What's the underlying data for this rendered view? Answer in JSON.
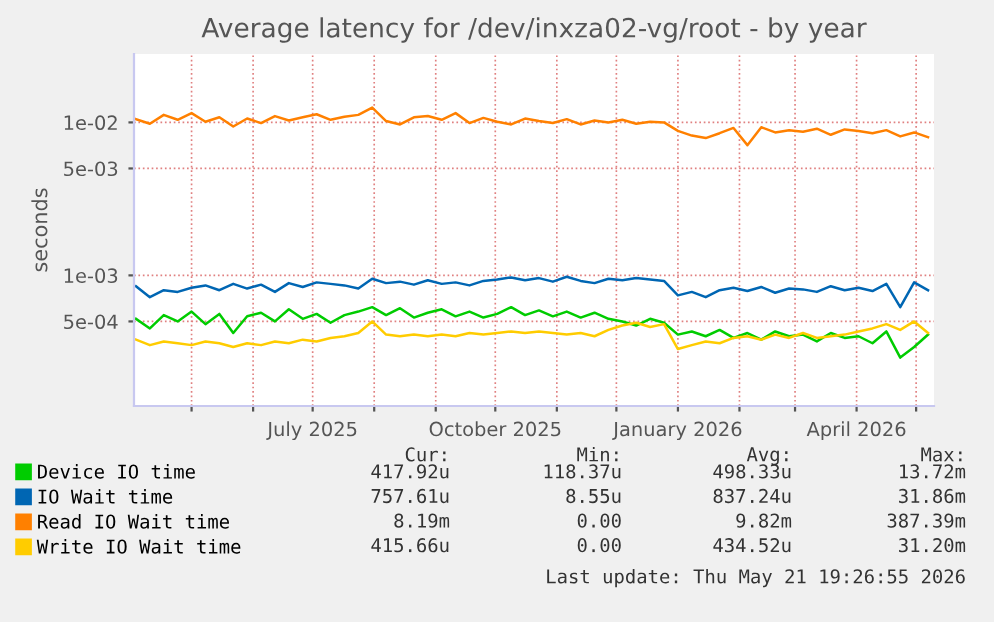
{
  "chart_data": {
    "type": "line",
    "title": "Average latency for /dev/inxza02-vg/root - by year",
    "ylabel": "seconds",
    "log": "y",
    "grid": true,
    "legend": "bottom",
    "ylim": [
      0.00014,
      0.028
    ],
    "yticks": [
      {
        "value": 0.0005,
        "label": "5e-04"
      },
      {
        "value": 0.001,
        "label": "1e-03"
      },
      {
        "value": 0.005,
        "label": "5e-03"
      },
      {
        "value": 0.01,
        "label": "1e-02"
      }
    ],
    "xlim": [
      "2025-04-02",
      "2026-05-10"
    ],
    "xticks": [
      {
        "value": "2025-05-01",
        "label": null
      },
      {
        "value": "2025-06-01",
        "label": null
      },
      {
        "value": "2025-07-01",
        "label": "July 2025"
      },
      {
        "value": "2025-08-01",
        "label": null
      },
      {
        "value": "2025-09-01",
        "label": null
      },
      {
        "value": "2025-10-01",
        "label": "October 2025"
      },
      {
        "value": "2025-11-01",
        "label": null
      },
      {
        "value": "2025-12-01",
        "label": null
      },
      {
        "value": "2026-01-01",
        "label": "January 2026"
      },
      {
        "value": "2026-02-01",
        "label": null
      },
      {
        "value": "2026-03-01",
        "label": null
      },
      {
        "value": "2026-04-01",
        "label": "April 2026"
      },
      {
        "value": "2026-05-01",
        "label": null
      }
    ],
    "x": [
      "2025-04-03",
      "2025-04-10",
      "2025-04-17",
      "2025-04-24",
      "2025-05-01",
      "2025-05-08",
      "2025-05-15",
      "2025-05-22",
      "2025-05-29",
      "2025-06-05",
      "2025-06-12",
      "2025-06-19",
      "2025-06-26",
      "2025-07-03",
      "2025-07-10",
      "2025-07-17",
      "2025-07-24",
      "2025-07-31",
      "2025-08-07",
      "2025-08-14",
      "2025-08-21",
      "2025-08-28",
      "2025-09-04",
      "2025-09-11",
      "2025-09-18",
      "2025-09-25",
      "2025-10-02",
      "2025-10-09",
      "2025-10-16",
      "2025-10-23",
      "2025-10-30",
      "2025-11-06",
      "2025-11-13",
      "2025-11-20",
      "2025-11-27",
      "2025-12-04",
      "2025-12-11",
      "2025-12-18",
      "2025-12-25",
      "2026-01-01",
      "2026-01-08",
      "2026-01-15",
      "2026-01-22",
      "2026-01-29",
      "2026-02-05",
      "2026-02-12",
      "2026-02-19",
      "2026-02-26",
      "2026-03-05",
      "2026-03-12",
      "2026-03-19",
      "2026-03-26",
      "2026-04-02",
      "2026-04-09",
      "2026-04-16",
      "2026-04-23",
      "2026-04-30",
      "2026-05-07"
    ],
    "series": [
      {
        "name": "Device IO time",
        "color": "#00cc00",
        "values": [
          0.00052,
          0.00045,
          0.00055,
          0.0005,
          0.00058,
          0.00048,
          0.00056,
          0.00042,
          0.00054,
          0.00057,
          0.0005,
          0.0006,
          0.00052,
          0.00056,
          0.00049,
          0.00055,
          0.00058,
          0.00062,
          0.00055,
          0.00061,
          0.00053,
          0.00057,
          0.0006,
          0.00054,
          0.00058,
          0.00053,
          0.00056,
          0.00062,
          0.00055,
          0.00059,
          0.00054,
          0.00058,
          0.00053,
          0.00057,
          0.00052,
          0.0005,
          0.00047,
          0.00052,
          0.00049,
          0.00041,
          0.00043,
          0.0004,
          0.00044,
          0.00039,
          0.00042,
          0.00038,
          0.00043,
          0.0004,
          0.00041,
          0.00037,
          0.00042,
          0.00039,
          0.0004,
          0.00036,
          0.00043,
          0.00029,
          0.00034,
          0.00041
        ]
      },
      {
        "name": "IO Wait time",
        "color": "#0066b3",
        "values": [
          0.00085,
          0.00072,
          0.0008,
          0.00078,
          0.00083,
          0.00086,
          0.0008,
          0.00088,
          0.00082,
          0.00087,
          0.00078,
          0.00089,
          0.00084,
          0.0009,
          0.00088,
          0.00086,
          0.00082,
          0.00095,
          0.00089,
          0.00091,
          0.00087,
          0.00093,
          0.00088,
          0.0009,
          0.00086,
          0.00092,
          0.00094,
          0.00097,
          0.00093,
          0.00096,
          0.00091,
          0.00098,
          0.00092,
          0.00089,
          0.00095,
          0.00093,
          0.00096,
          0.00094,
          0.00092,
          0.00074,
          0.00078,
          0.00072,
          0.0008,
          0.00083,
          0.00079,
          0.00084,
          0.00077,
          0.00082,
          0.00081,
          0.00078,
          0.00085,
          0.0008,
          0.00083,
          0.00079,
          0.00088,
          0.00062,
          0.0009,
          0.0008
        ]
      },
      {
        "name": "Read IO Wait time",
        "color": "#ff8000",
        "values": [
          0.0105,
          0.0098,
          0.0112,
          0.0104,
          0.0115,
          0.0101,
          0.0108,
          0.0094,
          0.0106,
          0.0099,
          0.011,
          0.0103,
          0.0108,
          0.0113,
          0.0104,
          0.0109,
          0.0112,
          0.0125,
          0.0102,
          0.0097,
          0.0108,
          0.011,
          0.0104,
          0.0115,
          0.0099,
          0.0107,
          0.0101,
          0.0097,
          0.0106,
          0.0102,
          0.0099,
          0.0105,
          0.0097,
          0.0103,
          0.01,
          0.0104,
          0.0098,
          0.0101,
          0.01,
          0.0088,
          0.0082,
          0.0079,
          0.0085,
          0.0092,
          0.0071,
          0.0093,
          0.0086,
          0.0089,
          0.0087,
          0.0091,
          0.0083,
          0.009,
          0.0088,
          0.0085,
          0.0089,
          0.0081,
          0.0086,
          0.008
        ]
      },
      {
        "name": "Write IO Wait time",
        "color": "#ffcc00",
        "values": [
          0.00038,
          0.00035,
          0.00037,
          0.00036,
          0.00035,
          0.00037,
          0.00036,
          0.00034,
          0.00036,
          0.00035,
          0.00037,
          0.00036,
          0.00038,
          0.00037,
          0.00039,
          0.0004,
          0.00042,
          0.0005,
          0.00041,
          0.0004,
          0.00041,
          0.0004,
          0.00041,
          0.0004,
          0.00042,
          0.00041,
          0.00042,
          0.00043,
          0.00042,
          0.00043,
          0.00042,
          0.00041,
          0.00042,
          0.0004,
          0.00044,
          0.00047,
          0.00049,
          0.00046,
          0.00048,
          0.00033,
          0.00035,
          0.00037,
          0.00036,
          0.00039,
          0.0004,
          0.00038,
          0.00041,
          0.00039,
          0.00042,
          0.00039,
          0.0004,
          0.00041,
          0.00043,
          0.00045,
          0.00048,
          0.00044,
          0.0005,
          0.00042
        ]
      }
    ],
    "annotations": [
      "Cur:",
      "Min:",
      "Avg:",
      "Max:",
      "417.92u",
      "118.37u",
      "498.33u",
      "13.72m",
      "757.61u",
      "8.55u",
      "837.24u",
      "31.86m",
      "8.19m",
      "0.00",
      "9.82m",
      "387.39m",
      "415.66u",
      "0.00",
      "434.52u",
      "31.20m",
      "Last update: Thu May 21 19:26:55 2026"
    ]
  }
}
